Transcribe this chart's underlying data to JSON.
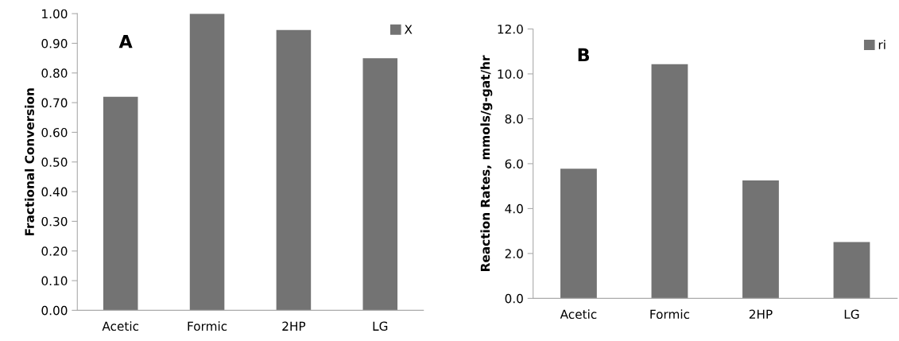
{
  "chart_data": [
    {
      "type": "bar",
      "ylabel": "Fractional Conversion",
      "annotations": [
        "A"
      ],
      "categories": [
        "Acetic",
        "Formic",
        "2HP",
        "LG"
      ],
      "series": [
        {
          "name": "X",
          "color": "#737373",
          "values": [
            0.72,
            1.0,
            0.945,
            0.85
          ]
        }
      ],
      "ylim": [
        0,
        1.0
      ],
      "yticks": [
        {
          "value": 0,
          "label": "0.00"
        },
        {
          "value": 0.1,
          "label": "0.10"
        },
        {
          "value": 0.2,
          "label": "0.20"
        },
        {
          "value": 0.3,
          "label": "0.30"
        },
        {
          "value": 0.4,
          "label": "0.40"
        },
        {
          "value": 0.5,
          "label": "0.50"
        },
        {
          "value": 0.6,
          "label": "0.60"
        },
        {
          "value": 0.7,
          "label": "0.70"
        },
        {
          "value": 0.8,
          "label": "0.80"
        },
        {
          "value": 0.9,
          "label": "0.90"
        },
        {
          "value": 1.0,
          "label": "1.00"
        }
      ],
      "grid": false,
      "legend": "top right"
    },
    {
      "type": "bar",
      "ylabel": "Reaction Rates, mmols/g-gat/hr",
      "annotations": [
        "B"
      ],
      "categories": [
        "Acetic",
        "Formic",
        "2HP",
        "LG"
      ],
      "series": [
        {
          "name": "ri",
          "color": "#737373",
          "values": [
            5.78,
            10.43,
            5.25,
            2.51
          ]
        }
      ],
      "ylim": [
        0,
        12
      ],
      "yticks": [
        {
          "value": 0,
          "label": "0.0"
        },
        {
          "value": 2,
          "label": "2.0"
        },
        {
          "value": 4,
          "label": "4.0"
        },
        {
          "value": 6,
          "label": "6.0"
        },
        {
          "value": 8,
          "label": "8.0"
        },
        {
          "value": 10,
          "label": "10.0"
        },
        {
          "value": 12,
          "label": "12.0"
        }
      ],
      "grid": false,
      "legend": "top right"
    }
  ]
}
